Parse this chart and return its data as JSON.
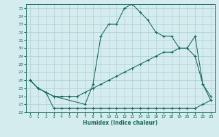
{
  "xlabel": "Humidex (Indice chaleur)",
  "bg_color": "#d4ecee",
  "grid_color": "#aecfd4",
  "line_color": "#1a6b5a",
  "xlim": [
    -0.5,
    23.5
  ],
  "ylim": [
    22,
    35.5
  ],
  "xticks": [
    0,
    1,
    2,
    3,
    4,
    5,
    6,
    7,
    8,
    9,
    10,
    11,
    12,
    13,
    14,
    15,
    16,
    17,
    18,
    19,
    20,
    21,
    22,
    23
  ],
  "yticks": [
    22,
    23,
    24,
    25,
    26,
    27,
    28,
    29,
    30,
    31,
    32,
    33,
    34,
    35
  ],
  "series1_x": [
    0,
    1,
    2,
    3,
    4,
    5,
    6,
    7,
    8,
    9,
    10,
    11,
    12,
    13,
    14,
    15,
    16,
    17,
    18,
    19,
    20,
    21,
    22,
    23
  ],
  "series1_y": [
    26.0,
    25.0,
    24.5,
    22.5,
    22.5,
    22.5,
    22.5,
    22.5,
    22.5,
    22.5,
    22.5,
    22.5,
    22.5,
    22.5,
    22.5,
    22.5,
    22.5,
    22.5,
    22.5,
    22.5,
    22.5,
    22.5,
    23.0,
    23.5
  ],
  "series2_x": [
    0,
    1,
    2,
    3,
    4,
    5,
    6,
    7,
    8,
    9,
    10,
    11,
    12,
    13,
    14,
    15,
    16,
    17,
    18,
    19,
    20,
    21,
    22,
    23
  ],
  "series2_y": [
    26.0,
    25.0,
    24.5,
    24.0,
    24.0,
    24.0,
    24.0,
    24.5,
    25.0,
    25.5,
    26.0,
    26.5,
    27.0,
    27.5,
    28.0,
    28.5,
    29.0,
    29.5,
    29.5,
    30.0,
    30.0,
    29.0,
    25.5,
    24.0
  ],
  "series3_x": [
    0,
    1,
    2,
    3,
    7,
    8,
    9,
    10,
    11,
    12,
    13,
    14,
    15,
    16,
    17,
    18,
    19,
    20,
    21,
    22,
    23
  ],
  "series3_y": [
    26.0,
    25.0,
    24.5,
    24.0,
    23.0,
    25.5,
    31.5,
    33.0,
    33.0,
    35.0,
    35.5,
    34.5,
    33.5,
    32.0,
    31.5,
    31.5,
    30.0,
    30.0,
    31.5,
    25.5,
    23.5
  ]
}
